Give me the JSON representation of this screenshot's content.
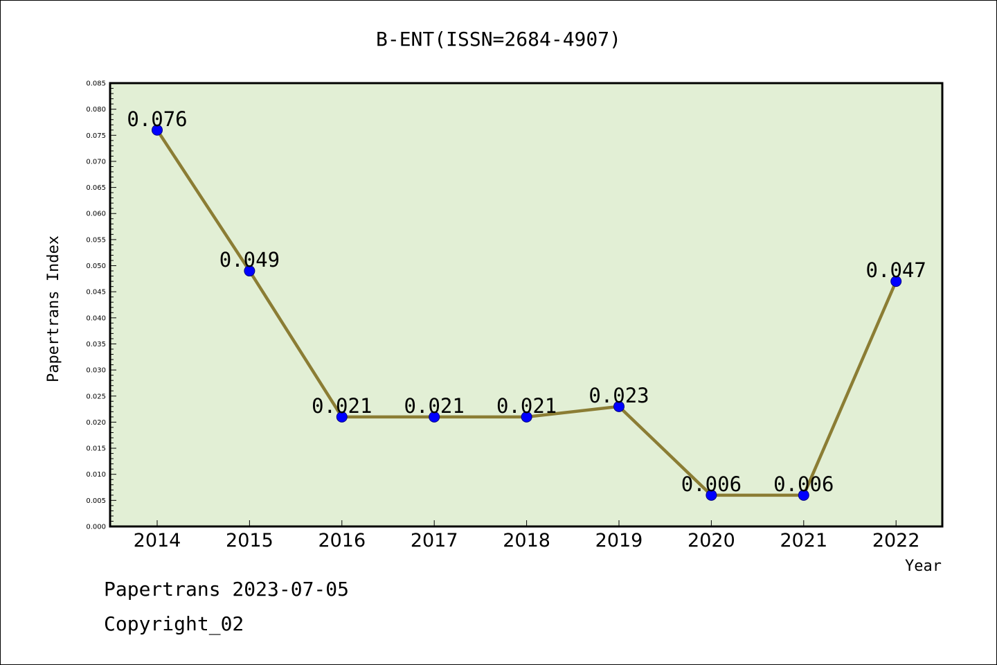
{
  "chart_data": {
    "type": "line",
    "title": "B-ENT(ISSN=2684-4907)",
    "xlabel": "Year",
    "ylabel": "Papertrans Index",
    "categories": [
      "2014",
      "2015",
      "2016",
      "2017",
      "2018",
      "2019",
      "2020",
      "2021",
      "2022"
    ],
    "values": [
      0.076,
      0.049,
      0.021,
      0.021,
      0.021,
      0.023,
      0.006,
      0.006,
      0.047
    ],
    "data_labels": [
      "0.076",
      "0.049",
      "0.021",
      "0.021",
      "0.021",
      "0.023",
      "0.006",
      "0.006",
      "0.047"
    ],
    "ylim": [
      0,
      0.085
    ],
    "yticks": [
      "0.000",
      "0.005",
      "0.010",
      "0.015",
      "0.020",
      "0.025",
      "0.030",
      "0.035",
      "0.040",
      "0.045",
      "0.050",
      "0.055",
      "0.060",
      "0.065",
      "0.070",
      "0.075",
      "0.080",
      "0.085"
    ],
    "grid": false,
    "legend": "none",
    "colors": {
      "plot_background": "#e2efd5",
      "line": "#8b7d34",
      "marker": "#0000ff",
      "axis": "#000000"
    }
  },
  "footer": {
    "line1": "Papertrans 2023-07-05",
    "line2": "Copyright_02"
  }
}
